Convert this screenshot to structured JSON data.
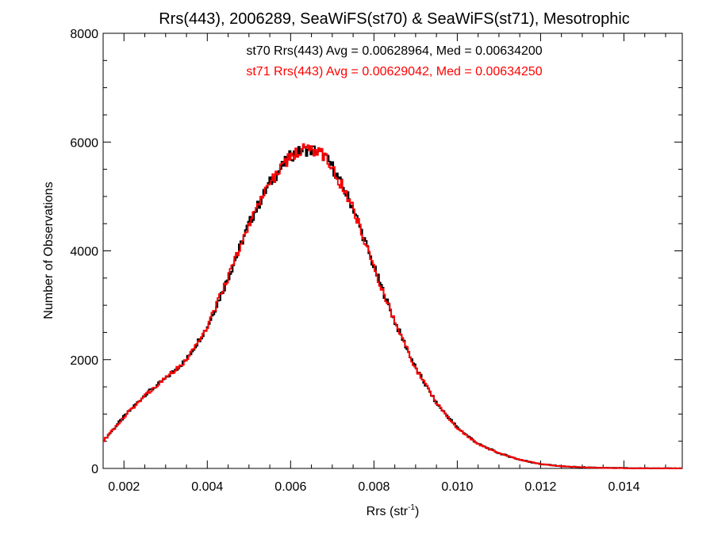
{
  "chart_data": {
    "type": "line",
    "step": true,
    "title": "Rrs(443), 2006289, SeaWiFS(st70) & SeaWiFS(st71), Mesotrophic",
    "xlabel": "Rrs (str",
    "xlabel_sup": "-1",
    "xlabel_close": ")",
    "ylabel": "Number of Observations",
    "xlim": [
      0.0015,
      0.0154
    ],
    "ylim": [
      0,
      8000
    ],
    "xticks": [
      0.002,
      0.004,
      0.006,
      0.008,
      0.01,
      0.012,
      0.014
    ],
    "xtick_labels": [
      "0.002",
      "0.004",
      "0.006",
      "0.008",
      "0.010",
      "0.012",
      "0.014"
    ],
    "yticks": [
      0,
      2000,
      4000,
      6000,
      8000
    ],
    "ytick_labels": [
      "0",
      "2000",
      "4000",
      "6000",
      "8000"
    ],
    "annotations": [
      {
        "text": "st70 Rrs(443) Avg = 0.00628964, Med = 0.00634200",
        "color": "#000000"
      },
      {
        "text": "st71 Rrs(443) Avg = 0.00629042, Med = 0.00634250",
        "color": "#ff0000"
      }
    ],
    "series": [
      {
        "color": "#000000",
        "x": [
          0.0015,
          0.002,
          0.0025,
          0.003,
          0.0035,
          0.004,
          0.0045,
          0.005,
          0.0055,
          0.006,
          0.0063,
          0.0066,
          0.0068,
          0.007,
          0.0075,
          0.008,
          0.0085,
          0.009,
          0.0095,
          0.01,
          0.0105,
          0.011,
          0.0115,
          0.012,
          0.0125,
          0.013,
          0.0135,
          0.014,
          0.0145,
          0.015,
          0.0154
        ],
        "values": [
          500,
          950,
          1350,
          1650,
          2000,
          2600,
          3500,
          4500,
          5250,
          5750,
          5850,
          5850,
          5750,
          5550,
          4800,
          3700,
          2700,
          1850,
          1200,
          750,
          450,
          280,
          160,
          80,
          40,
          20,
          10,
          5,
          2,
          1,
          0
        ]
      },
      {
        "color": "#ff0000",
        "x": [
          0.0015,
          0.002,
          0.0025,
          0.003,
          0.0035,
          0.004,
          0.0045,
          0.005,
          0.0055,
          0.006,
          0.0063,
          0.0066,
          0.0068,
          0.007,
          0.0075,
          0.008,
          0.0085,
          0.009,
          0.0095,
          0.01,
          0.0105,
          0.011,
          0.0115,
          0.012,
          0.0125,
          0.013,
          0.0135,
          0.014,
          0.0145,
          0.015,
          0.0154
        ],
        "values": [
          500,
          940,
          1340,
          1660,
          1990,
          2610,
          3510,
          4490,
          5260,
          5740,
          5860,
          5840,
          5760,
          5540,
          4810,
          3690,
          2710,
          1840,
          1210,
          740,
          450,
          280,
          160,
          80,
          40,
          20,
          10,
          5,
          2,
          1,
          0
        ]
      }
    ]
  }
}
